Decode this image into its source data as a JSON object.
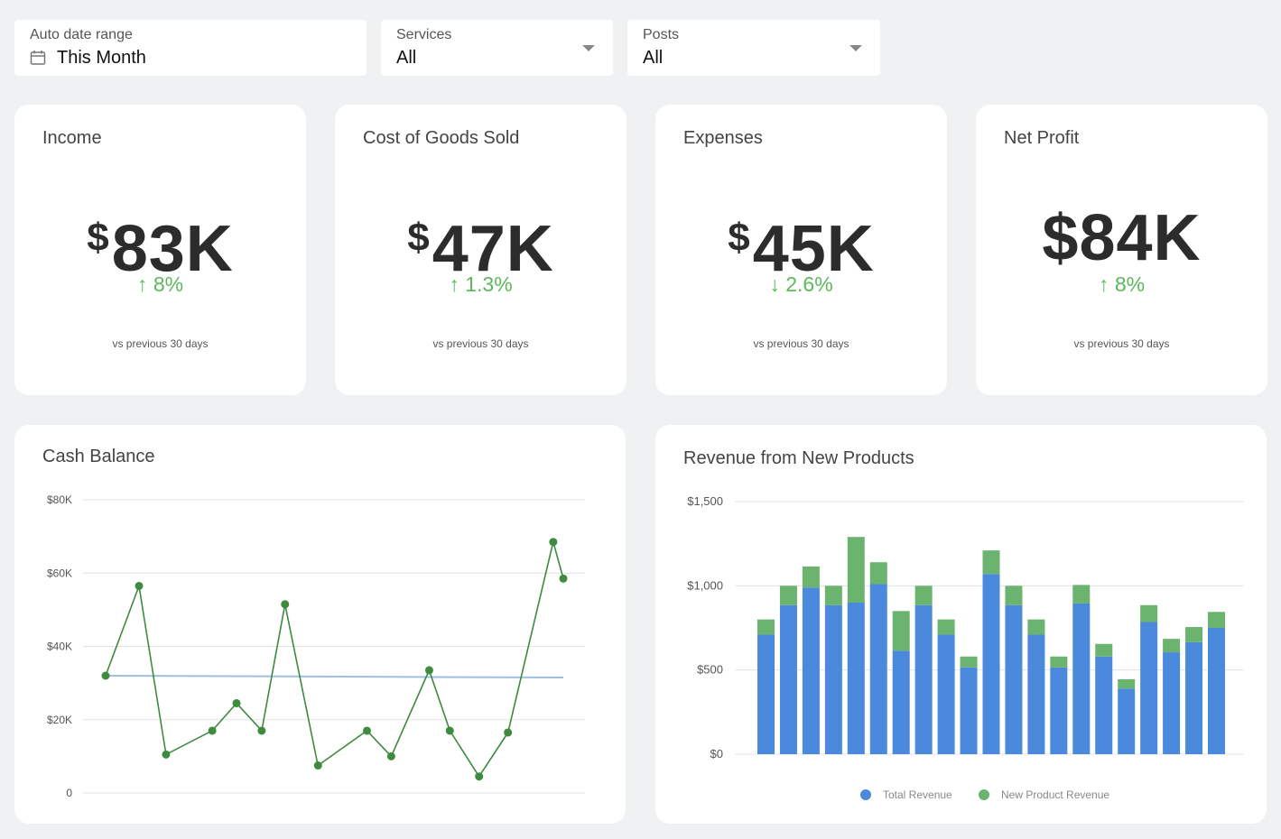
{
  "filters": [
    {
      "label": "Auto date range",
      "value": "This Month",
      "icon": "calendar-icon"
    },
    {
      "label": "Services",
      "value": "All"
    },
    {
      "label": "Posts",
      "value": "All"
    }
  ],
  "kpis": [
    {
      "title": "Income",
      "currency": "$",
      "amount": "83K",
      "arrow": "↑",
      "change": "8%",
      "note": "vs previous 30 days"
    },
    {
      "title": "Cost of Goods Sold",
      "currency": "$",
      "amount": "47K",
      "arrow": "↑",
      "change": "1.3%",
      "note": "vs previous 30 days"
    },
    {
      "title": "Expenses",
      "currency": "$",
      "amount": "45K",
      "arrow": "↓",
      "change": "2.6%",
      "note": "vs previous 30 days"
    },
    {
      "title": "Net Profit",
      "currency": "$",
      "amount": "84K",
      "arrow": "↑",
      "change": "8%",
      "note": "vs previous 30 days"
    }
  ],
  "colors": {
    "positive": "#5cb85c",
    "line": "#3e8a3e",
    "trend": "#9fbfe0",
    "blue": "#4a89dc",
    "green": "#6ab46f"
  },
  "chart_data": [
    {
      "type": "line",
      "title": "Cash Balance",
      "ylim": [
        0,
        80000
      ],
      "ytick_labels": [
        "0",
        "$20K",
        "$40K",
        "$60K",
        "$80K"
      ],
      "ytick_values": [
        0,
        20000,
        40000,
        60000,
        80000
      ],
      "grid": true,
      "series": [
        {
          "values": [
            32000,
            56500,
            10500,
            17000,
            24500,
            17000,
            51500,
            7500,
            17000,
            10000,
            33500,
            17000,
            4500,
            16500,
            68500,
            58500
          ]
        }
      ],
      "trend": [
        32000,
        31500
      ]
    },
    {
      "type": "bar",
      "title": "Revenue from New Products",
      "ylim": [
        0,
        1500
      ],
      "ytick_labels": [
        "$0",
        "$500",
        "$1,000",
        "$1,500"
      ],
      "ytick_values": [
        0,
        500,
        1000,
        1500
      ],
      "grid": true,
      "legend": "bottom",
      "series": [
        {
          "name": "Total Revenue",
          "values": [
            710,
            885,
            990,
            885,
            900,
            1010,
            615,
            885,
            710,
            515,
            1070,
            885,
            710,
            515,
            895,
            580,
            390,
            785,
            605,
            665,
            750
          ]
        },
        {
          "name": "New Product Revenue",
          "values": [
            90,
            115,
            125,
            115,
            390,
            130,
            235,
            115,
            90,
            65,
            140,
            115,
            90,
            65,
            110,
            75,
            55,
            100,
            80,
            90,
            95
          ]
        }
      ]
    }
  ]
}
